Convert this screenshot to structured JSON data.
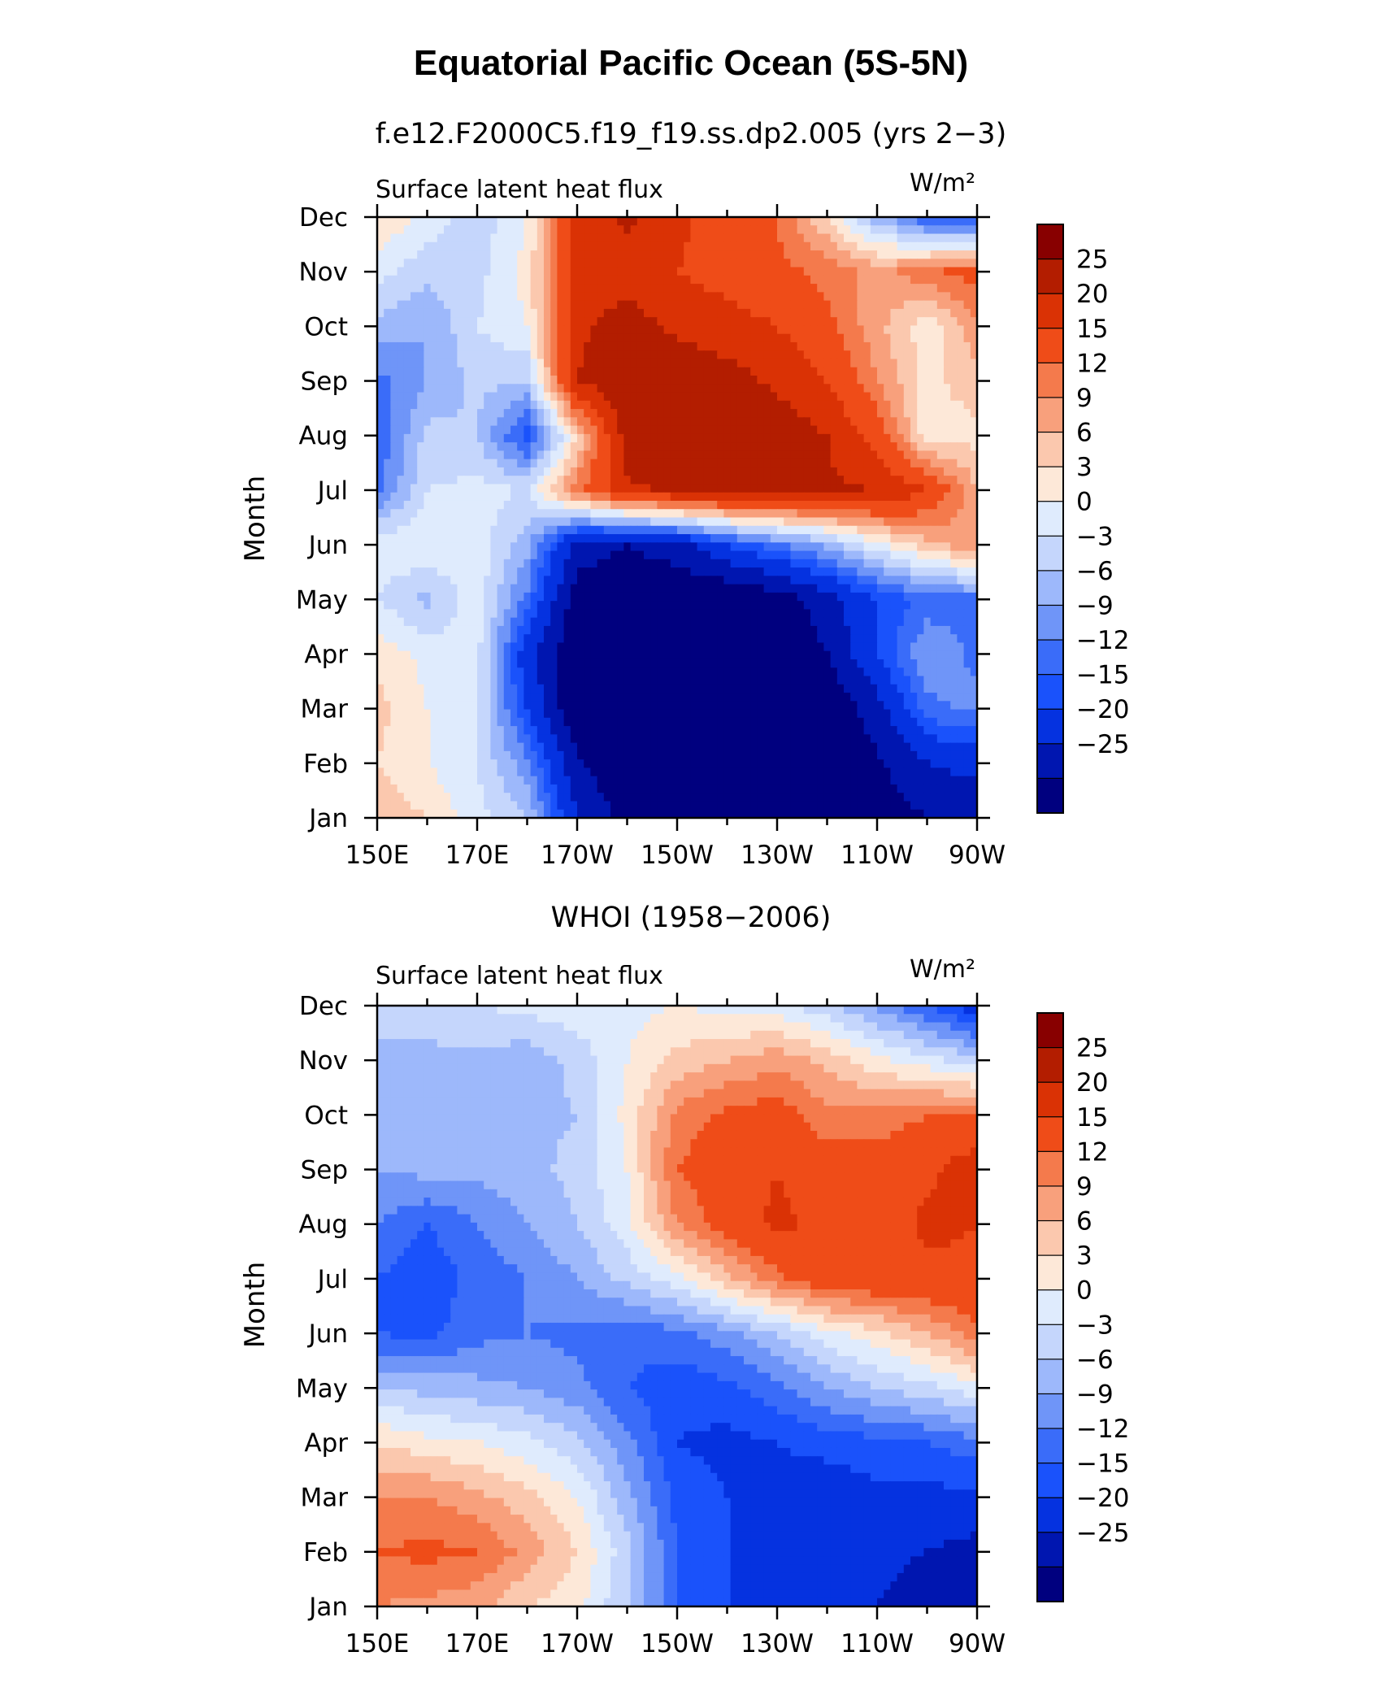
{
  "title": "Equatorial Pacific Ocean (5S-5N)",
  "colorbar": {
    "labels": [
      "25",
      "20",
      "15",
      "12",
      "9",
      "6",
      "3",
      "0",
      "−3",
      "−6",
      "−9",
      "−12",
      "−15",
      "−20",
      "−25"
    ],
    "bounds": [
      -30,
      -25,
      -20,
      -15,
      -12,
      -9,
      -6,
      -3,
      0,
      3,
      6,
      9,
      12,
      15,
      20,
      25,
      30
    ],
    "colors": [
      "#00007f",
      "#0016b0",
      "#0532e0",
      "#1a52fb",
      "#3a6cf9",
      "#6f95f8",
      "#9db8fb",
      "#c5d6fc",
      "#dfebfd",
      "#fde8d8",
      "#fbc8ae",
      "#f8a07c",
      "#f47a4c",
      "#ef4c18",
      "#da3205",
      "#b31d00",
      "#880000"
    ]
  },
  "chart_data": [
    {
      "type": "heatmap",
      "subtitle": "f.e12.F2000C5.f19_f19.ss.dp2.005 (yrs 2−3)",
      "left_label": "Surface latent heat flux",
      "units": "W/m²",
      "ylabel": "Month",
      "x_ticks": [
        "150E",
        "170E",
        "170W",
        "150W",
        "130W",
        "110W",
        "90W"
      ],
      "y_ticks": [
        "Jan",
        "Feb",
        "Mar",
        "Apr",
        "May",
        "Jun",
        "Jul",
        "Aug",
        "Sep",
        "Oct",
        "Nov",
        "Dec"
      ],
      "x_range": [
        150,
        270
      ],
      "y_range": [
        0,
        11
      ],
      "grid_x": [
        150,
        160,
        170,
        180,
        190,
        200,
        210,
        220,
        230,
        240,
        250,
        260,
        270
      ],
      "values": [
        [
          8,
          6,
          1,
          -3,
          -20,
          -27,
          -30,
          -30,
          -30,
          -30,
          -28,
          -25,
          -25
        ],
        [
          6,
          3,
          0,
          -8,
          -24,
          -30,
          -30,
          -30,
          -30,
          -30,
          -26,
          -20,
          -18
        ],
        [
          7,
          3,
          0,
          -15,
          -30,
          -30,
          -30,
          -30,
          -30,
          -30,
          -22,
          -10,
          -8
        ],
        [
          5,
          2,
          1,
          -18,
          -30,
          -30,
          -30,
          -30,
          -30,
          -25,
          -15,
          -6,
          -10
        ],
        [
          0,
          -4,
          2,
          -10,
          -28,
          -30,
          -30,
          -30,
          -28,
          -22,
          -15,
          -11,
          -10
        ],
        [
          2,
          3,
          2,
          -5,
          -22,
          -25,
          -22,
          -15,
          -10,
          -5,
          2,
          8,
          12
        ],
        [
          -10,
          0,
          1,
          0,
          14,
          24,
          26,
          27,
          27,
          26,
          25,
          20,
          9
        ],
        [
          -12,
          -2,
          -3,
          -14,
          6,
          28,
          30,
          30,
          28,
          25,
          18,
          4,
          5
        ],
        [
          -10,
          -6,
          -2,
          -3,
          25,
          29,
          29,
          27,
          24,
          20,
          12,
          5,
          8
        ],
        [
          -4,
          -6,
          0,
          3,
          24,
          27,
          24,
          22,
          20,
          16,
          10,
          4,
          11
        ],
        [
          1,
          -2,
          -1,
          4,
          22,
          23,
          20,
          18,
          16,
          14,
          11,
          14,
          17
        ],
        [
          6,
          2,
          -2,
          3,
          22,
          26,
          21,
          18,
          15,
          6,
          -5,
          -12,
          -14
        ]
      ]
    },
    {
      "type": "heatmap",
      "subtitle": "WHOI (1958−2006)",
      "left_label": "Surface latent heat flux",
      "units": "W/m²",
      "ylabel": "Month",
      "x_ticks": [
        "150E",
        "170E",
        "170W",
        "150W",
        "130W",
        "110W",
        "90W"
      ],
      "y_ticks": [
        "Jan",
        "Feb",
        "Mar",
        "Apr",
        "May",
        "Jun",
        "Jul",
        "Aug",
        "Sep",
        "Oct",
        "Nov",
        "Dec"
      ],
      "x_range": [
        150,
        270
      ],
      "y_range": [
        0,
        11
      ],
      "grid_x": [
        150,
        160,
        170,
        180,
        190,
        200,
        210,
        220,
        230,
        240,
        250,
        260,
        270
      ],
      "values": [
        [
          12,
          11,
          10,
          6,
          4,
          -3,
          -12,
          -15,
          -17,
          -18,
          -20,
          -22,
          -25
        ],
        [
          15,
          16,
          15,
          11,
          6,
          -2,
          -12,
          -15,
          -18,
          -18,
          -19,
          -20,
          -22
        ],
        [
          12,
          12,
          10,
          7,
          3,
          -5,
          -13,
          -15,
          -16,
          -17,
          -16,
          -16,
          -16
        ],
        [
          6,
          4,
          3,
          1,
          -2,
          -8,
          -15,
          -16,
          -15,
          -14,
          -13,
          -12,
          -10
        ],
        [
          -3,
          -4,
          -5,
          -6,
          -8,
          -12,
          -14,
          -13,
          -10,
          -6,
          -3,
          -1,
          2
        ],
        [
          -12,
          -13,
          -10,
          -9,
          -10,
          -11,
          -10,
          -7,
          -3,
          2,
          5,
          9,
          14
        ],
        [
          -12,
          -14,
          -11,
          -9,
          -6,
          -2,
          2,
          8,
          14,
          18,
          19,
          19,
          19
        ],
        [
          -9,
          -12,
          -9,
          -6,
          -3,
          2,
          12,
          17,
          21,
          19,
          17,
          21,
          20
        ],
        [
          -6,
          -5,
          -5,
          -4,
          -2,
          3,
          15,
          18,
          20,
          17,
          17,
          19,
          23
        ],
        [
          -4,
          -3,
          -4,
          -4,
          -3,
          4,
          13,
          16,
          17,
          13,
          13,
          15,
          15
        ],
        [
          -3,
          -4,
          -4,
          -5,
          -2,
          3,
          7,
          9,
          11,
          8,
          4,
          1,
          -2
        ],
        [
          -3,
          -1,
          0,
          1,
          2,
          2,
          3,
          2,
          1,
          -2,
          -7,
          -12,
          -18
        ]
      ]
    }
  ]
}
